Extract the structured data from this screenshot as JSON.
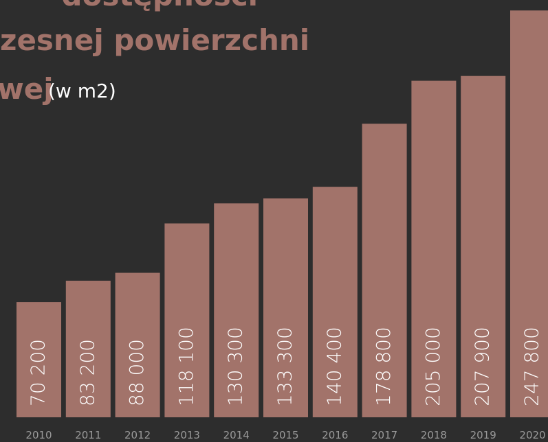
{
  "chart_data": {
    "type": "bar",
    "title_lines": [
      "dostępności",
      "zesnej powierzchni",
      "wej"
    ],
    "subtitle": "(w m2)",
    "categories": [
      "2010",
      "2011",
      "2012",
      "2013",
      "2014",
      "2015",
      "2016",
      "2017",
      "2018",
      "2019",
      "2020"
    ],
    "values": [
      70200,
      83200,
      88000,
      118100,
      130300,
      133300,
      140400,
      178800,
      205000,
      207900,
      247800
    ],
    "value_labels": [
      "70 200",
      "83 200",
      "88 000",
      "118 100",
      "130 300",
      "133 300",
      "140 400",
      "178 800",
      "205 000",
      "207 900",
      "247 800"
    ],
    "color": "#a2736a",
    "ylim": [
      0,
      250000
    ]
  }
}
